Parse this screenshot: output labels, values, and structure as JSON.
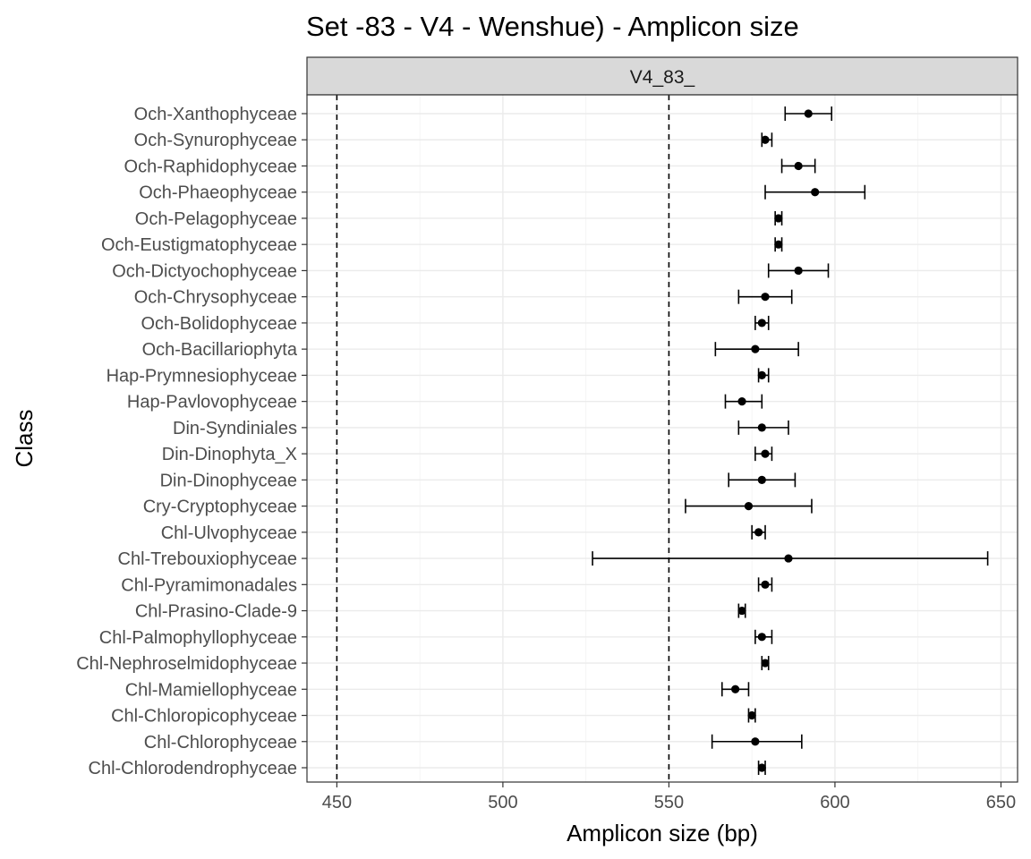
{
  "chart_data": {
    "type": "scatter",
    "title": "Set -83 - V4 - Wenshue) - Amplicon size",
    "facet": "V4_83_",
    "xlabel": "Amplicon size (bp)",
    "ylabel": "Class",
    "xlim": [
      441,
      655
    ],
    "x_ticks": [
      450,
      500,
      550,
      600,
      650
    ],
    "reference_lines": [
      450,
      550
    ],
    "grid": true,
    "points": [
      {
        "class": "Och-Xanthophyceae",
        "mean": 592,
        "min": 585,
        "max": 599
      },
      {
        "class": "Och-Synurophyceae",
        "mean": 579,
        "min": 578,
        "max": 581
      },
      {
        "class": "Och-Raphidophyceae",
        "mean": 589,
        "min": 584,
        "max": 594
      },
      {
        "class": "Och-Phaeophyceae",
        "mean": 594,
        "min": 579,
        "max": 609
      },
      {
        "class": "Och-Pelagophyceae",
        "mean": 583,
        "min": 582,
        "max": 584
      },
      {
        "class": "Och-Eustigmatophyceae",
        "mean": 583,
        "min": 582,
        "max": 584
      },
      {
        "class": "Och-Dictyochophyceae",
        "mean": 589,
        "min": 580,
        "max": 598
      },
      {
        "class": "Och-Chrysophyceae",
        "mean": 579,
        "min": 571,
        "max": 587
      },
      {
        "class": "Och-Bolidophyceae",
        "mean": 578,
        "min": 576,
        "max": 580
      },
      {
        "class": "Och-Bacillariophyta",
        "mean": 576,
        "min": 564,
        "max": 589
      },
      {
        "class": "Hap-Prymnesiophyceae",
        "mean": 578,
        "min": 577,
        "max": 580
      },
      {
        "class": "Hap-Pavlovophyceae",
        "mean": 572,
        "min": 567,
        "max": 578
      },
      {
        "class": "Din-Syndiniales",
        "mean": 578,
        "min": 571,
        "max": 586
      },
      {
        "class": "Din-Dinophyta_X",
        "mean": 579,
        "min": 576,
        "max": 581
      },
      {
        "class": "Din-Dinophyceae",
        "mean": 578,
        "min": 568,
        "max": 588
      },
      {
        "class": "Cry-Cryptophyceae",
        "mean": 574,
        "min": 555,
        "max": 593
      },
      {
        "class": "Chl-Ulvophyceae",
        "mean": 577,
        "min": 575,
        "max": 579
      },
      {
        "class": "Chl-Trebouxiophyceae",
        "mean": 586,
        "min": 527,
        "max": 646
      },
      {
        "class": "Chl-Pyramimonadales",
        "mean": 579,
        "min": 577,
        "max": 581
      },
      {
        "class": "Chl-Prasino-Clade-9",
        "mean": 572,
        "min": 571,
        "max": 573
      },
      {
        "class": "Chl-Palmophyllophyceae",
        "mean": 578,
        "min": 576,
        "max": 581
      },
      {
        "class": "Chl-Nephroselmidophyceae",
        "mean": 579,
        "min": 578,
        "max": 580
      },
      {
        "class": "Chl-Mamiellophyceae",
        "mean": 570,
        "min": 566,
        "max": 574
      },
      {
        "class": "Chl-Chloropicophyceae",
        "mean": 575,
        "min": 574,
        "max": 576
      },
      {
        "class": "Chl-Chlorophyceae",
        "mean": 576,
        "min": 563,
        "max": 590
      },
      {
        "class": "Chl-Chlorodendrophyceae",
        "mean": 578,
        "min": 577,
        "max": 579
      }
    ]
  }
}
